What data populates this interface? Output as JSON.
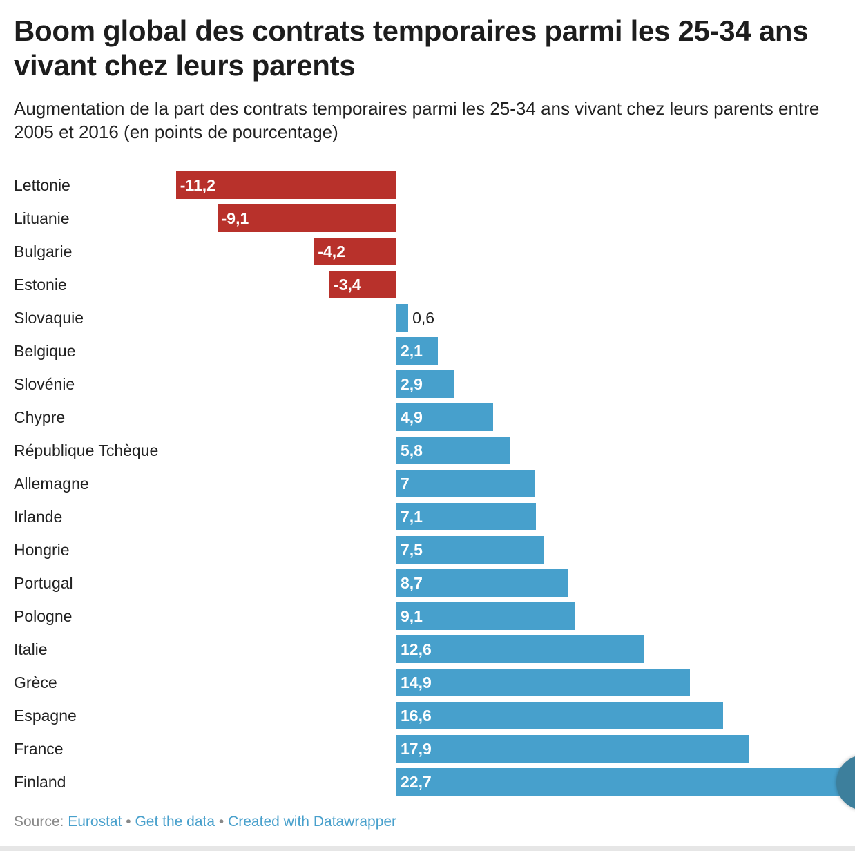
{
  "title": "Boom global des contrats temporaires parmi les 25-34 ans vivant chez leurs parents",
  "subtitle": "Augmentation de la part des contrats temporaires parmi les 25-34 ans vivant chez leurs parents entre 2005 et 2016 (en points de pourcentage)",
  "chart_data": {
    "type": "bar",
    "orientation": "horizontal",
    "title": "Boom global des contrats temporaires parmi les 25-34 ans vivant chez leurs parents",
    "xlabel": "",
    "ylabel": "",
    "categories": [
      "Lettonie",
      "Lituanie",
      "Bulgarie",
      "Estonie",
      "Slovaquie",
      "Belgique",
      "Slovénie",
      "Chypre",
      "République Tchèque",
      "Allemagne",
      "Irlande",
      "Hongrie",
      "Portugal",
      "Pologne",
      "Italie",
      "Grèce",
      "Espagne",
      "France",
      "Finland"
    ],
    "values": [
      -11.2,
      -9.1,
      -4.2,
      -3.4,
      0.6,
      2.1,
      2.9,
      4.9,
      5.8,
      7,
      7.1,
      7.5,
      8.7,
      9.1,
      12.6,
      14.9,
      16.6,
      17.9,
      22.7
    ],
    "value_labels": [
      "-11,2",
      "-9,1",
      "-4,2",
      "-3,4",
      "0,6",
      "2,1",
      "2,9",
      "4,9",
      "5,8",
      "7",
      "7,1",
      "7,5",
      "8,7",
      "9,1",
      "12,6",
      "14,9",
      "16,6",
      "17,9",
      "22,7"
    ],
    "xlim": [
      -11.2,
      22.7
    ],
    "colors": {
      "negative": "#b8312b",
      "positive": "#47a0cc"
    }
  },
  "footer": {
    "source_label": "Source:",
    "source_link": "Eurostat",
    "separator": " • ",
    "get_data": "Get the data",
    "created_with": "Created with Datawrapper"
  }
}
